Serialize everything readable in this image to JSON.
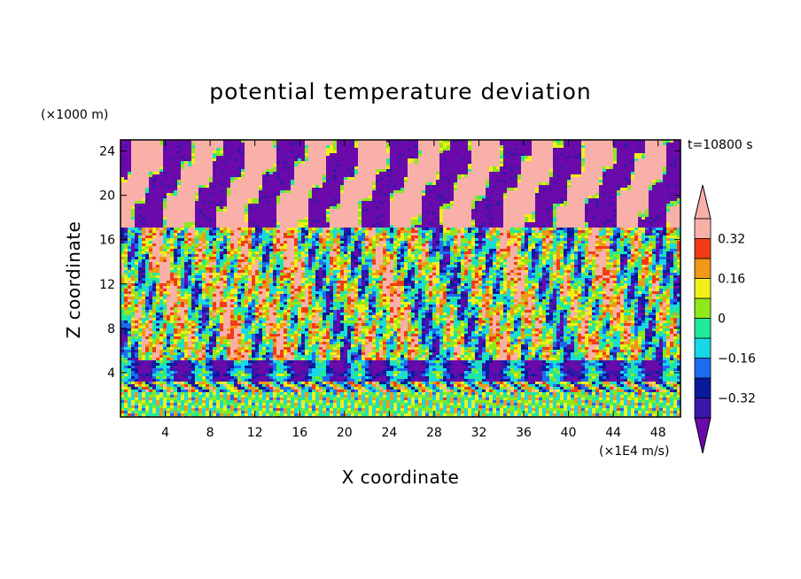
{
  "chart_data": {
    "type": "heatmap",
    "title": "potential temperature deviation",
    "time_label": "t=10800 s",
    "xlabel": "X coordinate",
    "ylabel": "Z coordinate",
    "x_unit": "(×1E4 m/s)",
    "y_unit": "(×1000 m)",
    "xlim": [
      0,
      50
    ],
    "ylim": [
      0,
      25
    ],
    "x_ticks": [
      4,
      8,
      12,
      16,
      20,
      24,
      28,
      32,
      36,
      40,
      44,
      48
    ],
    "y_ticks": [
      4,
      8,
      12,
      16,
      20,
      24
    ],
    "colorbar": {
      "levels": [
        -0.4,
        -0.32,
        -0.24,
        -0.16,
        -0.08,
        0,
        0.08,
        0.16,
        0.24,
        0.32,
        0.4
      ],
      "labeled_levels": [
        "0.32",
        "0.16",
        "0",
        "−0.16",
        "−0.32"
      ],
      "extend": "both",
      "colors_low_to_high": [
        "#6a0aab",
        "#3a16a8",
        "#0a1a9c",
        "#1c6cf0",
        "#18d8e8",
        "#22e89a",
        "#8ee81c",
        "#f0f018",
        "#f09818",
        "#f03c14",
        "#f8b0a8"
      ]
    }
  }
}
